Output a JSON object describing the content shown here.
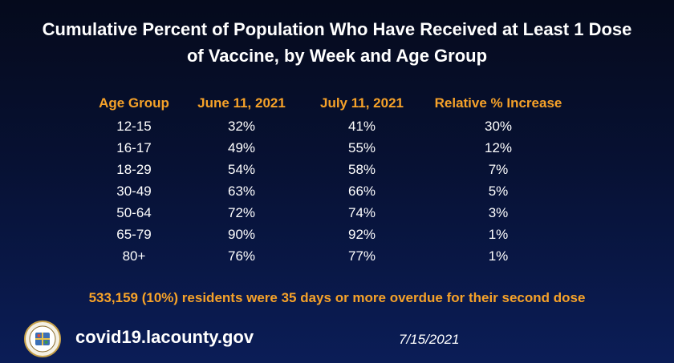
{
  "title": "Cumulative Percent of Population Who Have Received at Least 1 Dose of Vaccine, by Week and Age Group",
  "table": {
    "headers": [
      "Age Group",
      "June 11, 2021",
      "July 11, 2021",
      "Relative % Increase"
    ],
    "rows": [
      [
        "12-15",
        "32%",
        "41%",
        "30%"
      ],
      [
        "16-17",
        "49%",
        "55%",
        "12%"
      ],
      [
        "18-29",
        "54%",
        "58%",
        "7%"
      ],
      [
        "30-49",
        "63%",
        "66%",
        "5%"
      ],
      [
        "50-64",
        "72%",
        "74%",
        "3%"
      ],
      [
        "65-79",
        "90%",
        "92%",
        "1%"
      ],
      [
        "80+",
        "76%",
        "77%",
        "1%"
      ]
    ]
  },
  "note": "533,159 (10%) residents were 35 days or more overdue for their second dose",
  "footer": {
    "website": "covid19.lacounty.gov",
    "date": "7/15/2021"
  },
  "colors": {
    "header_accent": "#f6a229",
    "background_top": "#050a1c",
    "background_bottom": "#0b1d57",
    "text": "#ffffff"
  },
  "icons": {
    "seal": "county-seal-icon"
  }
}
